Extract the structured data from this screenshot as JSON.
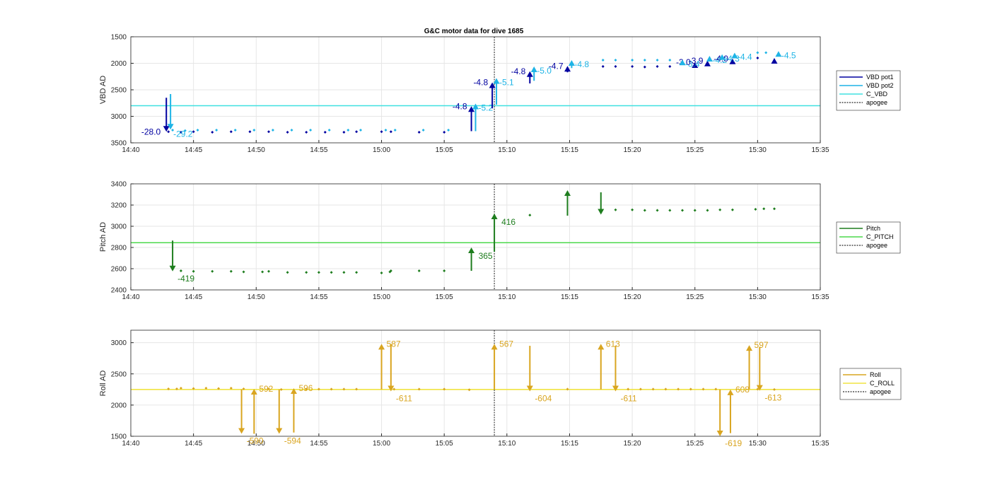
{
  "chart_data": [
    {
      "type": "scatter",
      "title": "G&C motor data for dive 1685",
      "ylabel": "VBD AD",
      "xlim": [
        "14:40",
        "15:35"
      ],
      "ylim": [
        1500,
        3500
      ],
      "y_reversed": true,
      "grid": true,
      "xticks": [
        "14:40",
        "14:45",
        "14:50",
        "14:55",
        "15:00",
        "15:05",
        "15:10",
        "15:15",
        "15:20",
        "15:25",
        "15:30",
        "15:35"
      ],
      "yticks": [
        "1500",
        "2000",
        "2500",
        "3000",
        "3500"
      ],
      "legend": [
        "VBD pot1",
        "VBD pot2",
        "C_VBD",
        "apogee"
      ],
      "legend_position": "right",
      "colors": {
        "pot1": "#0000a0",
        "pot2": "#1eb4e6",
        "ref": "#40e0e0",
        "apogee": "#505050"
      },
      "reference_line": {
        "name": "C_VBD",
        "y": 2800
      },
      "apogee_time": "15:09",
      "pot1_points": [
        [
          "14:43:00",
          3290
        ],
        [
          "14:44:00",
          3300
        ],
        [
          "14:45:00",
          3290
        ],
        [
          "14:46:30",
          3300
        ],
        [
          "14:48:00",
          3290
        ],
        [
          "14:49:30",
          3290
        ],
        [
          "14:51:00",
          3290
        ],
        [
          "14:52:30",
          3300
        ],
        [
          "14:54:00",
          3300
        ],
        [
          "14:55:30",
          3300
        ],
        [
          "14:57:00",
          3300
        ],
        [
          "14:58:00",
          3290
        ],
        [
          "15:00:00",
          3290
        ],
        [
          "15:00:45",
          3290
        ],
        [
          "15:03:00",
          3300
        ],
        [
          "15:05:00",
          3300
        ],
        [
          "15:17:40",
          2060
        ],
        [
          "15:18:40",
          2060
        ],
        [
          "15:20:00",
          2060
        ],
        [
          "15:21:00",
          2070
        ],
        [
          "15:22:00",
          2060
        ],
        [
          "15:23:00",
          2060
        ],
        [
          "15:30:00",
          1900
        ]
      ],
      "pot2_points": [
        [
          "14:43:20",
          3260
        ],
        [
          "14:44:20",
          3270
        ],
        [
          "14:45:20",
          3260
        ],
        [
          "14:46:50",
          3260
        ],
        [
          "14:48:20",
          3260
        ],
        [
          "14:49:50",
          3260
        ],
        [
          "14:51:20",
          3260
        ],
        [
          "14:52:50",
          3260
        ],
        [
          "14:54:20",
          3260
        ],
        [
          "14:55:50",
          3260
        ],
        [
          "14:57:20",
          3260
        ],
        [
          "14:58:20",
          3260
        ],
        [
          "15:00:20",
          3260
        ],
        [
          "15:01:05",
          3260
        ],
        [
          "15:03:20",
          3260
        ],
        [
          "15:05:20",
          3260
        ],
        [
          "15:17:40",
          1940
        ],
        [
          "15:18:40",
          1940
        ],
        [
          "15:20:00",
          1940
        ],
        [
          "15:21:00",
          1940
        ],
        [
          "15:22:00",
          1940
        ],
        [
          "15:23:00",
          1940
        ],
        [
          "15:30:00",
          1800
        ],
        [
          "15:30:40",
          1800
        ]
      ],
      "moves": [
        {
          "series": "pot1",
          "time": "14:42:50",
          "from": 2650,
          "to": 3290,
          "label": "-28.0"
        },
        {
          "series": "pot2",
          "time": "14:43:10",
          "from": 2580,
          "to": 3250,
          "label": "-29.2"
        },
        {
          "series": "pot1",
          "time": "15:07:10",
          "from": 3280,
          "to": 2810,
          "label": "-4.8"
        },
        {
          "series": "pot2",
          "time": "15:07:30",
          "from": 3280,
          "to": 2760,
          "label": "-5.2"
        },
        {
          "series": "pot1",
          "time": "15:08:50",
          "from": 2850,
          "to": 2360,
          "label": "-4.8"
        },
        {
          "series": "pot2",
          "time": "15:09:10",
          "from": 2780,
          "to": 2280,
          "label": "-5.1"
        },
        {
          "series": "pot1",
          "time": "15:11:50",
          "from": 2380,
          "to": 2150,
          "label": "-4.8"
        },
        {
          "series": "pot2",
          "time": "15:12:10",
          "from": 2330,
          "to": 2060,
          "label": "-5.0"
        },
        {
          "series": "pot1",
          "time": "15:14:50",
          "from": 2170,
          "to": 2050,
          "label": "-4.7"
        },
        {
          "series": "pot2",
          "time": "15:15:10",
          "from": 2090,
          "to": 1940,
          "label": "-4.8"
        },
        {
          "series": "pot1",
          "time": "15:25:00",
          "from": 2040,
          "to": 1980,
          "label": "-3.0"
        },
        {
          "series": "pot2",
          "time": "15:24:00",
          "from": 2000,
          "to": 1930,
          "label": "-3.4"
        },
        {
          "series": "pot1",
          "time": "15:26:00",
          "from": 2010,
          "to": 1950,
          "label": "-3.9"
        },
        {
          "series": "pot2",
          "time": "15:26:10",
          "from": 1930,
          "to": 1860,
          "label": "-4.2"
        },
        {
          "series": "pot1",
          "time": "15:28:00",
          "from": 1970,
          "to": 1910,
          "label": "-4.0"
        },
        {
          "series": "pot2",
          "time": "15:27:10",
          "from": 1900,
          "to": 1830,
          "label": "-4.3"
        },
        {
          "series": "pot2",
          "time": "15:28:10",
          "from": 1870,
          "to": 1800,
          "label": "-4.4"
        },
        {
          "series": "pot1",
          "time": "15:31:20",
          "from": 1960,
          "to": 1900,
          "label": ""
        },
        {
          "series": "pot2",
          "time": "15:31:40",
          "from": 1830,
          "to": 1770,
          "label": "-4.5"
        }
      ]
    },
    {
      "type": "scatter",
      "ylabel": "Pitch AD",
      "xlim": [
        "14:40",
        "15:35"
      ],
      "ylim": [
        2400,
        3400
      ],
      "grid": true,
      "xticks": [
        "14:40",
        "14:45",
        "14:50",
        "14:55",
        "15:00",
        "15:05",
        "15:10",
        "15:15",
        "15:20",
        "15:25",
        "15:30",
        "15:35"
      ],
      "yticks": [
        "2400",
        "2600",
        "2800",
        "3000",
        "3200",
        "3400"
      ],
      "legend": [
        "Pitch",
        "C_PITCH",
        "apogee"
      ],
      "legend_position": "right",
      "colors": {
        "series": "#1e7d1e",
        "ref": "#4cd94c",
        "apogee": "#505050"
      },
      "reference_line": {
        "name": "C_PITCH",
        "y": 2845
      },
      "apogee_time": "15:09",
      "points": [
        [
          "14:44:00",
          2580
        ],
        [
          "14:45:00",
          2575
        ],
        [
          "14:46:30",
          2575
        ],
        [
          "14:48:00",
          2575
        ],
        [
          "14:49:00",
          2570
        ],
        [
          "14:50:30",
          2570
        ],
        [
          "14:51:00",
          2575
        ],
        [
          "14:52:30",
          2565
        ],
        [
          "14:54:00",
          2565
        ],
        [
          "14:55:00",
          2565
        ],
        [
          "14:56:00",
          2565
        ],
        [
          "14:57:00",
          2565
        ],
        [
          "14:58:00",
          2565
        ],
        [
          "15:00:00",
          2560
        ],
        [
          "15:00:40",
          2570
        ],
        [
          "15:00:45",
          2580
        ],
        [
          "15:03:00",
          2580
        ],
        [
          "15:05:00",
          2580
        ],
        [
          "15:11:50",
          3105
        ],
        [
          "15:18:40",
          3155
        ],
        [
          "15:20:00",
          3155
        ],
        [
          "15:21:00",
          3150
        ],
        [
          "15:22:00",
          3150
        ],
        [
          "15:23:00",
          3150
        ],
        [
          "15:24:00",
          3150
        ],
        [
          "15:25:00",
          3150
        ],
        [
          "15:26:00",
          3150
        ],
        [
          "15:27:00",
          3155
        ],
        [
          "15:28:00",
          3155
        ],
        [
          "15:29:50",
          3160
        ],
        [
          "15:30:30",
          3165
        ],
        [
          "15:31:20",
          3165
        ]
      ],
      "moves": [
        {
          "time": "14:43:20",
          "from": 2865,
          "to": 2575,
          "label": "-419"
        },
        {
          "time": "15:07:10",
          "from": 2580,
          "to": 2800,
          "label": "365"
        },
        {
          "time": "15:09:00",
          "from": 2760,
          "to": 3120,
          "label": "416"
        },
        {
          "time": "15:14:50",
          "from": 3100,
          "to": 3340,
          "label": ""
        },
        {
          "time": "15:17:30",
          "from": 3320,
          "to": 3110,
          "label": ""
        }
      ]
    },
    {
      "type": "scatter",
      "ylabel": "Roll AD",
      "xlim": [
        "14:40",
        "15:35"
      ],
      "ylim": [
        1500,
        3200
      ],
      "grid": true,
      "xticks": [
        "14:40",
        "14:45",
        "14:50",
        "14:55",
        "15:00",
        "15:05",
        "15:10",
        "15:15",
        "15:20",
        "15:25",
        "15:30",
        "15:35"
      ],
      "yticks": [
        "1500",
        "2000",
        "2500",
        "3000"
      ],
      "legend": [
        "Roll",
        "C_ROLL",
        "apogee"
      ],
      "legend_position": "right",
      "colors": {
        "series": "#d9a520",
        "ref": "#f0e442",
        "apogee": "#505050"
      },
      "reference_line": {
        "name": "C_ROLL",
        "y": 2250
      },
      "apogee_time": "15:09",
      "points": [
        [
          "14:43:00",
          2260
        ],
        [
          "14:43:40",
          2260
        ],
        [
          "14:44:00",
          2270
        ],
        [
          "14:45:00",
          2265
        ],
        [
          "14:46:00",
          2270
        ],
        [
          "14:47:00",
          2265
        ],
        [
          "14:48:00",
          2270
        ],
        [
          "14:49:00",
          2260
        ],
        [
          "14:51:00",
          2260
        ],
        [
          "14:52:00",
          2250
        ],
        [
          "14:54:00",
          2255
        ],
        [
          "14:55:00",
          2255
        ],
        [
          "14:56:00",
          2255
        ],
        [
          "14:57:00",
          2255
        ],
        [
          "14:58:00",
          2255
        ],
        [
          "15:01:00",
          2255
        ],
        [
          "15:03:00",
          2255
        ],
        [
          "15:05:00",
          2255
        ],
        [
          "15:07:00",
          2245
        ],
        [
          "15:14:50",
          2255
        ],
        [
          "15:19:40",
          2255
        ],
        [
          "15:20:40",
          2255
        ],
        [
          "15:21:40",
          2255
        ],
        [
          "15:22:40",
          2255
        ],
        [
          "15:23:40",
          2255
        ],
        [
          "15:24:40",
          2255
        ],
        [
          "15:25:40",
          2255
        ],
        [
          "15:26:40",
          2255
        ],
        [
          "15:30:00",
          2255
        ],
        [
          "15:31:20",
          2250
        ]
      ],
      "moves": [
        {
          "time": "14:48:50",
          "from": 2250,
          "to": 1540,
          "label": "-590"
        },
        {
          "time": "14:49:50",
          "from": 1540,
          "to": 2260,
          "label": "592"
        },
        {
          "time": "14:51:50",
          "from": 2250,
          "to": 1540,
          "label": "-594"
        },
        {
          "time": "14:53:00",
          "from": 1560,
          "to": 2270,
          "label": "596"
        },
        {
          "time": "15:00:00",
          "from": 2250,
          "to": 2980,
          "label": "587"
        },
        {
          "time": "15:00:45",
          "from": 2980,
          "to": 2220,
          "label": "-611"
        },
        {
          "time": "15:09:00",
          "from": 2250,
          "to": 2980,
          "label": "567"
        },
        {
          "time": "15:11:50",
          "from": 2950,
          "to": 2220,
          "label": "-604"
        },
        {
          "time": "15:17:30",
          "from": 2250,
          "to": 2980,
          "label": "613"
        },
        {
          "time": "15:18:40",
          "from": 2950,
          "to": 2220,
          "label": "-611"
        },
        {
          "time": "15:27:00",
          "from": 2250,
          "to": 1500,
          "label": "-619"
        },
        {
          "time": "15:27:50",
          "from": 1550,
          "to": 2250,
          "label": "608"
        },
        {
          "time": "15:29:20",
          "from": 2250,
          "to": 2960,
          "label": "597"
        },
        {
          "time": "15:30:10",
          "from": 2930,
          "to": 2230,
          "label": "-613"
        }
      ]
    }
  ]
}
